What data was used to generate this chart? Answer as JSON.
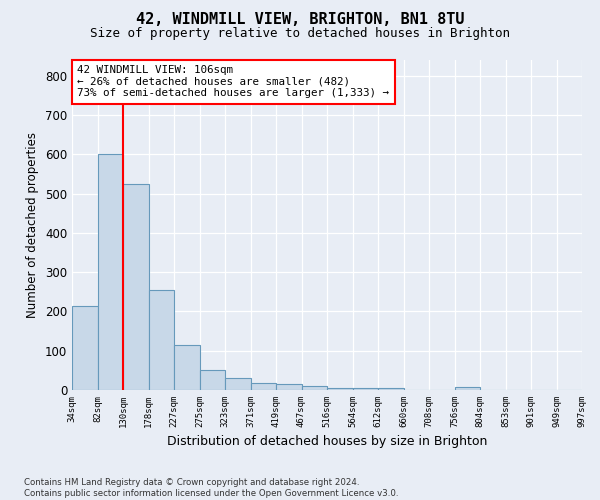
{
  "title": "42, WINDMILL VIEW, BRIGHTON, BN1 8TU",
  "subtitle": "Size of property relative to detached houses in Brighton",
  "xlabel": "Distribution of detached houses by size in Brighton",
  "ylabel": "Number of detached properties",
  "bar_values": [
    215,
    600,
    525,
    255,
    115,
    52,
    30,
    18,
    15,
    10,
    5,
    5,
    5,
    0,
    0,
    8,
    0,
    0,
    0,
    0
  ],
  "bar_edge_labels": [
    "34sqm",
    "82sqm",
    "130sqm",
    "178sqm",
    "227sqm",
    "275sqm",
    "323sqm",
    "371sqm",
    "419sqm",
    "467sqm",
    "516sqm",
    "564sqm",
    "612sqm",
    "660sqm",
    "708sqm",
    "756sqm",
    "804sqm",
    "853sqm",
    "901sqm",
    "949sqm",
    "997sqm"
  ],
  "bar_color": "#c8d8e8",
  "bar_edge_color": "#6699bb",
  "annotation_text": "42 WINDMILL VIEW: 106sqm\n← 26% of detached houses are smaller (482)\n73% of semi-detached houses are larger (1,333) →",
  "red_line_x": 1.5,
  "ylim_max": 840,
  "yticks": [
    0,
    100,
    200,
    300,
    400,
    500,
    600,
    700,
    800
  ],
  "footer_line1": "Contains HM Land Registry data © Crown copyright and database right 2024.",
  "footer_line2": "Contains public sector information licensed under the Open Government Licence v3.0.",
  "bg_color": "#e8edf5",
  "grid_color": "#ffffff"
}
